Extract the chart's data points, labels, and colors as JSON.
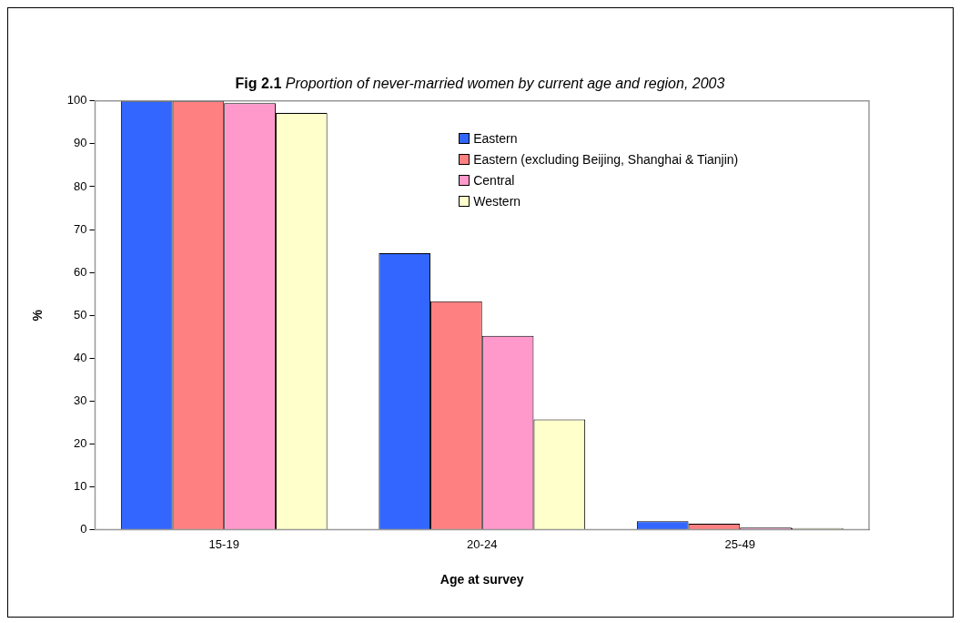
{
  "chart_data": {
    "type": "bar",
    "title": "Fig 2.1",
    "subtitle": "Proportion of never-married women by current age and region, 2003",
    "xlabel": "Age at survey",
    "ylabel": "%",
    "categories": [
      "15-19",
      "20-24",
      "25-49"
    ],
    "series": [
      {
        "name": "Eastern",
        "color": "#3366ff",
        "values": [
          100,
          64.5,
          2.0
        ]
      },
      {
        "name": "Eastern (excluding Beijing, Shanghai & Tianjin)",
        "color": "#ff8080",
        "values": [
          100,
          53.3,
          1.4
        ]
      },
      {
        "name": "Central",
        "color": "#ff99cc",
        "values": [
          99.5,
          45.2,
          0.5
        ]
      },
      {
        "name": "Western",
        "color": "#ffffcc",
        "values": [
          97.2,
          25.7,
          0.4
        ]
      }
    ],
    "ylim": [
      0,
      100
    ],
    "yticks": [
      0,
      10,
      20,
      30,
      40,
      50,
      60,
      70,
      80,
      90,
      100
    ],
    "grid": false,
    "legend": "top right"
  }
}
